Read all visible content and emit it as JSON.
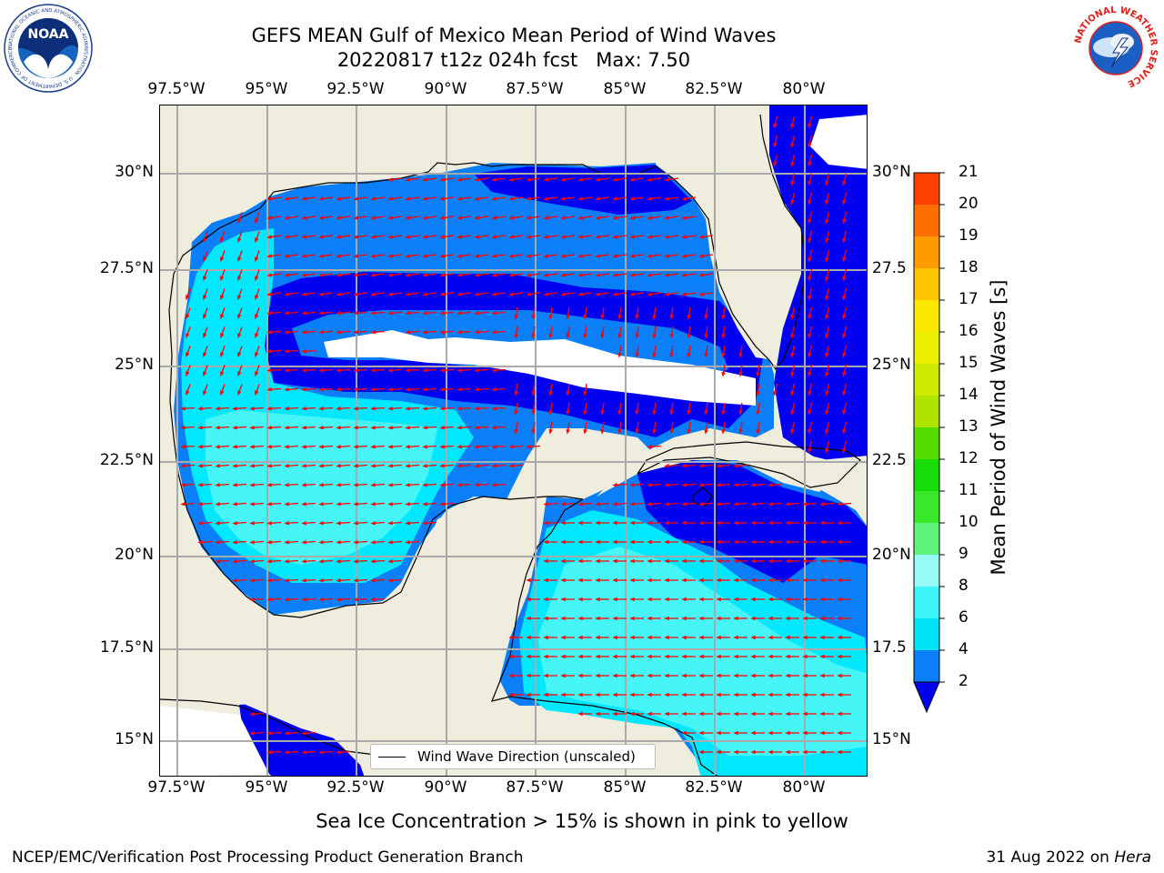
{
  "title_line1": "GEFS MEAN Gulf of Mexico Mean Period of Wind Waves",
  "title_line2": "20220817 t12z 024h fcst   Max: 7.50",
  "logos": {
    "left": "NOAA",
    "left_ring": "NATIONAL OCEANIC AND ATMOSPHERIC ADMINISTRATION · U.S. DEPARTMENT OF COMMERCE",
    "right_ring": "NATIONAL WEATHER SERVICE"
  },
  "lon_labels": [
    "97.5°W",
    "95°W",
    "92.5°W",
    "90°W",
    "87.5°W",
    "85°W",
    "82.5°W",
    "80°W"
  ],
  "lat_labels_left": [
    "30°N",
    "27.5°N",
    "25°N",
    "22.5°N",
    "20°N",
    "17.5°N",
    "15°N"
  ],
  "lat_labels_right": [
    "30°N",
    "27.5",
    "25°N",
    "22.5",
    "20°N",
    "17.5",
    "15°N"
  ],
  "legend_label": "Wind Wave Direction (unscaled)",
  "colorbar": {
    "title": "Mean Period of Wind Waves [s]",
    "ticks": [
      "2",
      "4",
      "6",
      "8",
      "9",
      "10",
      "11",
      "12",
      "13",
      "14",
      "15",
      "16",
      "17",
      "18",
      "19",
      "20",
      "21"
    ],
    "colors": [
      "#0b7ff7",
      "#00e5f5",
      "#3cf3f7",
      "#96fbf7",
      "#60f47e",
      "#38e82a",
      "#16dc08",
      "#55dd00",
      "#aee400",
      "#cdea00",
      "#ecf100",
      "#fbe800",
      "#ffc400",
      "#ff9b00",
      "#ff6e00",
      "#ff3f00",
      "#ff0d00"
    ],
    "extend_color": "#0000f0"
  },
  "map_colors": {
    "land": "#efedde",
    "ocean_2_4": "#0b7ff7",
    "ocean_lt2": "#0000f0",
    "ocean_4_6": "#00e8ff",
    "ocean_6_8": "#46f5f5",
    "arrow": "#ff0000",
    "grid": "#aaaaaa"
  },
  "note": "Sea Ice Concentration > 15% is shown in pink to yellow",
  "footer_left": "NCEP/EMC/Verification Post Processing Product Generation Branch",
  "footer_date": "31 Aug 2022 on",
  "footer_host": "Hera"
}
